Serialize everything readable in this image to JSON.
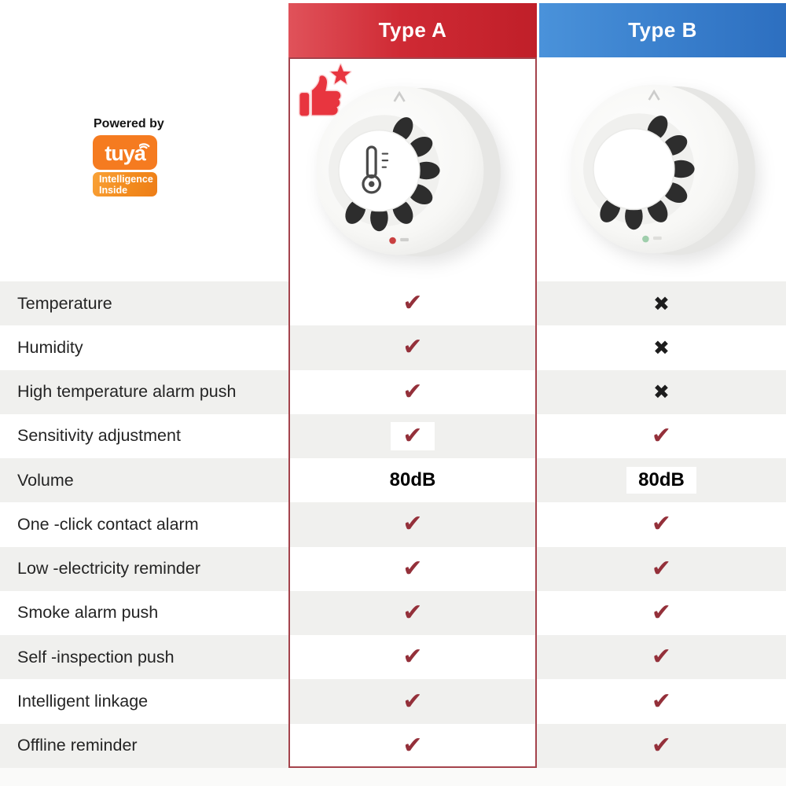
{
  "header": {
    "col_a": "Type A",
    "col_b": "Type B"
  },
  "branding": {
    "powered_by": "Powered by",
    "brand": "tuya",
    "tagline_line1": "Intelligence",
    "tagline_line2": "Inside"
  },
  "products": {
    "type_a": "smoke detector with temperature and humidity sensor, red LED, recommended (thumbs-up badge)",
    "type_b": "smoke detector without temperature sensor, green LED"
  },
  "glyphs": {
    "check": "✔",
    "cross": "✖"
  },
  "table": {
    "rows": [
      {
        "label": "Temperature",
        "type_a": {
          "kind": "check"
        },
        "type_b": {
          "kind": "cross"
        }
      },
      {
        "label": "Humidity",
        "type_a": {
          "kind": "check"
        },
        "type_b": {
          "kind": "cross"
        }
      },
      {
        "label": "High temperature alarm push",
        "type_a": {
          "kind": "check"
        },
        "type_b": {
          "kind": "cross"
        }
      },
      {
        "label": "Sensitivity adjustment",
        "type_a": {
          "kind": "check",
          "boxed": true
        },
        "type_b": {
          "kind": "check"
        }
      },
      {
        "label": "Volume",
        "type_a": {
          "kind": "text",
          "value": "80dB",
          "boxed": true
        },
        "type_b": {
          "kind": "text",
          "value": "80dB",
          "boxed": true
        }
      },
      {
        "label": "One -click contact alarm",
        "type_a": {
          "kind": "check"
        },
        "type_b": {
          "kind": "check"
        }
      },
      {
        "label": "Low -electricity reminder",
        "type_a": {
          "kind": "check"
        },
        "type_b": {
          "kind": "check"
        }
      },
      {
        "label": "Smoke alarm push",
        "type_a": {
          "kind": "check"
        },
        "type_b": {
          "kind": "check"
        }
      },
      {
        "label": "Self -inspection push",
        "type_a": {
          "kind": "check"
        },
        "type_b": {
          "kind": "check"
        }
      },
      {
        "label": "Intelligent linkage",
        "type_a": {
          "kind": "check"
        },
        "type_b": {
          "kind": "check"
        }
      },
      {
        "label": "Offline reminder",
        "type_a": {
          "kind": "check"
        },
        "type_b": {
          "kind": "check"
        }
      }
    ]
  },
  "colors": {
    "header_red": "#c01f29",
    "header_red_light": "#e0525a",
    "header_blue": "#2d6fc0",
    "header_blue_light": "#4a92da",
    "check_red": "#94303a",
    "cross_black": "#1d1d1d",
    "row_alt_gray": "#f0f0ee",
    "type_a_border": "#a4434c",
    "tuya_orange": "#f57b20",
    "badge_red": "#e8353f"
  }
}
